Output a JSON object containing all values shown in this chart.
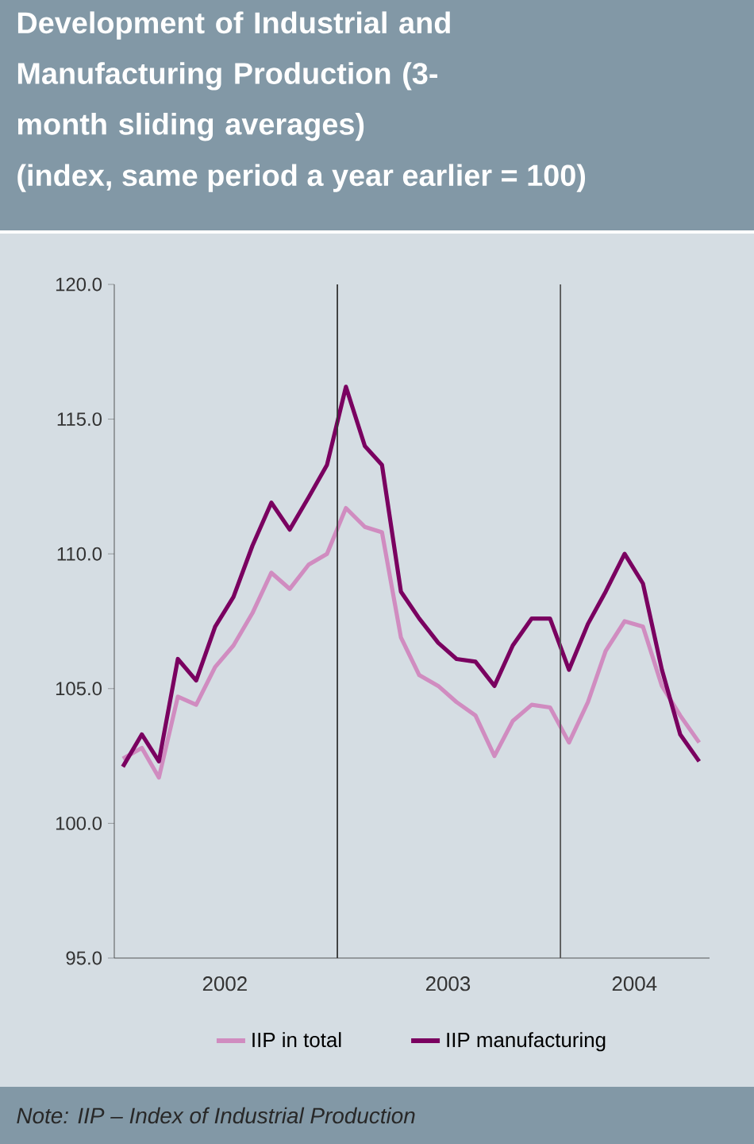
{
  "chart_data": {
    "type": "line",
    "title": "Development of Industrial and Manufacturing Production (3-month sliding averages)",
    "subtitle": "(index, same period a year earlier = 100)",
    "x": [
      "2002-01-15",
      "2002-02-15",
      "2002-03-15",
      "2002-04-15",
      "2002-05-15",
      "2002-06-15",
      "2002-07-15",
      "2002-08-15",
      "2002-09-15",
      "2002-10-15",
      "2002-11-15",
      "2002-12-15",
      "2003-01-15",
      "2003-02-15",
      "2003-03-15",
      "2003-04-15",
      "2003-05-15",
      "2003-06-15",
      "2003-07-15",
      "2003-08-15",
      "2003-09-15",
      "2003-10-15",
      "2003-11-15",
      "2003-12-15",
      "2004-01-15",
      "2004-02-15",
      "2004-03-15",
      "2004-04-15",
      "2004-05-15",
      "2004-06-15",
      "2004-07-15",
      "2004-08-15"
    ],
    "series": [
      {
        "name": "IIP in total",
        "color": "#d08cc0",
        "values": [
          102.4,
          102.8,
          101.7,
          104.7,
          104.4,
          105.8,
          106.6,
          107.8,
          109.3,
          108.7,
          109.6,
          110.0,
          111.7,
          111.0,
          110.8,
          106.9,
          105.5,
          105.1,
          104.5,
          104.0,
          102.5,
          103.8,
          104.4,
          104.3,
          103.0,
          104.5,
          106.4,
          107.5,
          107.3,
          105.1,
          104.0,
          103.0
        ]
      },
      {
        "name": "IIP manufacturing",
        "color": "#7a0060",
        "values": [
          102.1,
          103.3,
          102.3,
          106.1,
          105.3,
          107.3,
          108.4,
          110.3,
          111.9,
          110.9,
          112.1,
          113.3,
          116.2,
          114.0,
          113.3,
          108.6,
          107.6,
          106.7,
          106.1,
          106.0,
          105.1,
          106.6,
          107.6,
          107.6,
          105.7,
          107.4,
          108.6,
          110.0,
          108.9,
          105.7,
          103.3,
          102.3
        ]
      }
    ],
    "xlim": [
      "2002-01-01",
      "2004-09-01"
    ],
    "xticks": [
      {
        "value": "2002-07-01",
        "label": "2002"
      },
      {
        "value": "2003-07-01",
        "label": "2003"
      },
      {
        "value": "2004-05-01",
        "label": "2004"
      }
    ],
    "ylim": [
      95,
      120
    ],
    "yticks": [
      {
        "value": 95,
        "label": "95.0"
      },
      {
        "value": 100,
        "label": "100.0"
      },
      {
        "value": 105,
        "label": "105.0"
      },
      {
        "value": 110,
        "label": "110.0"
      },
      {
        "value": 115,
        "label": "115.0"
      },
      {
        "value": 120,
        "label": "120.0"
      }
    ],
    "ref_lines": [
      {
        "axis": "x",
        "value": "2003-01-01",
        "color": "#333333"
      },
      {
        "axis": "x",
        "value": "2004-01-01",
        "color": "#555555"
      }
    ],
    "grid": false,
    "legend": "bottom",
    "marker": "none",
    "line_style": "solid",
    "annotations": [
      "Note: IIP – Index of Industrial Production"
    ]
  }
}
